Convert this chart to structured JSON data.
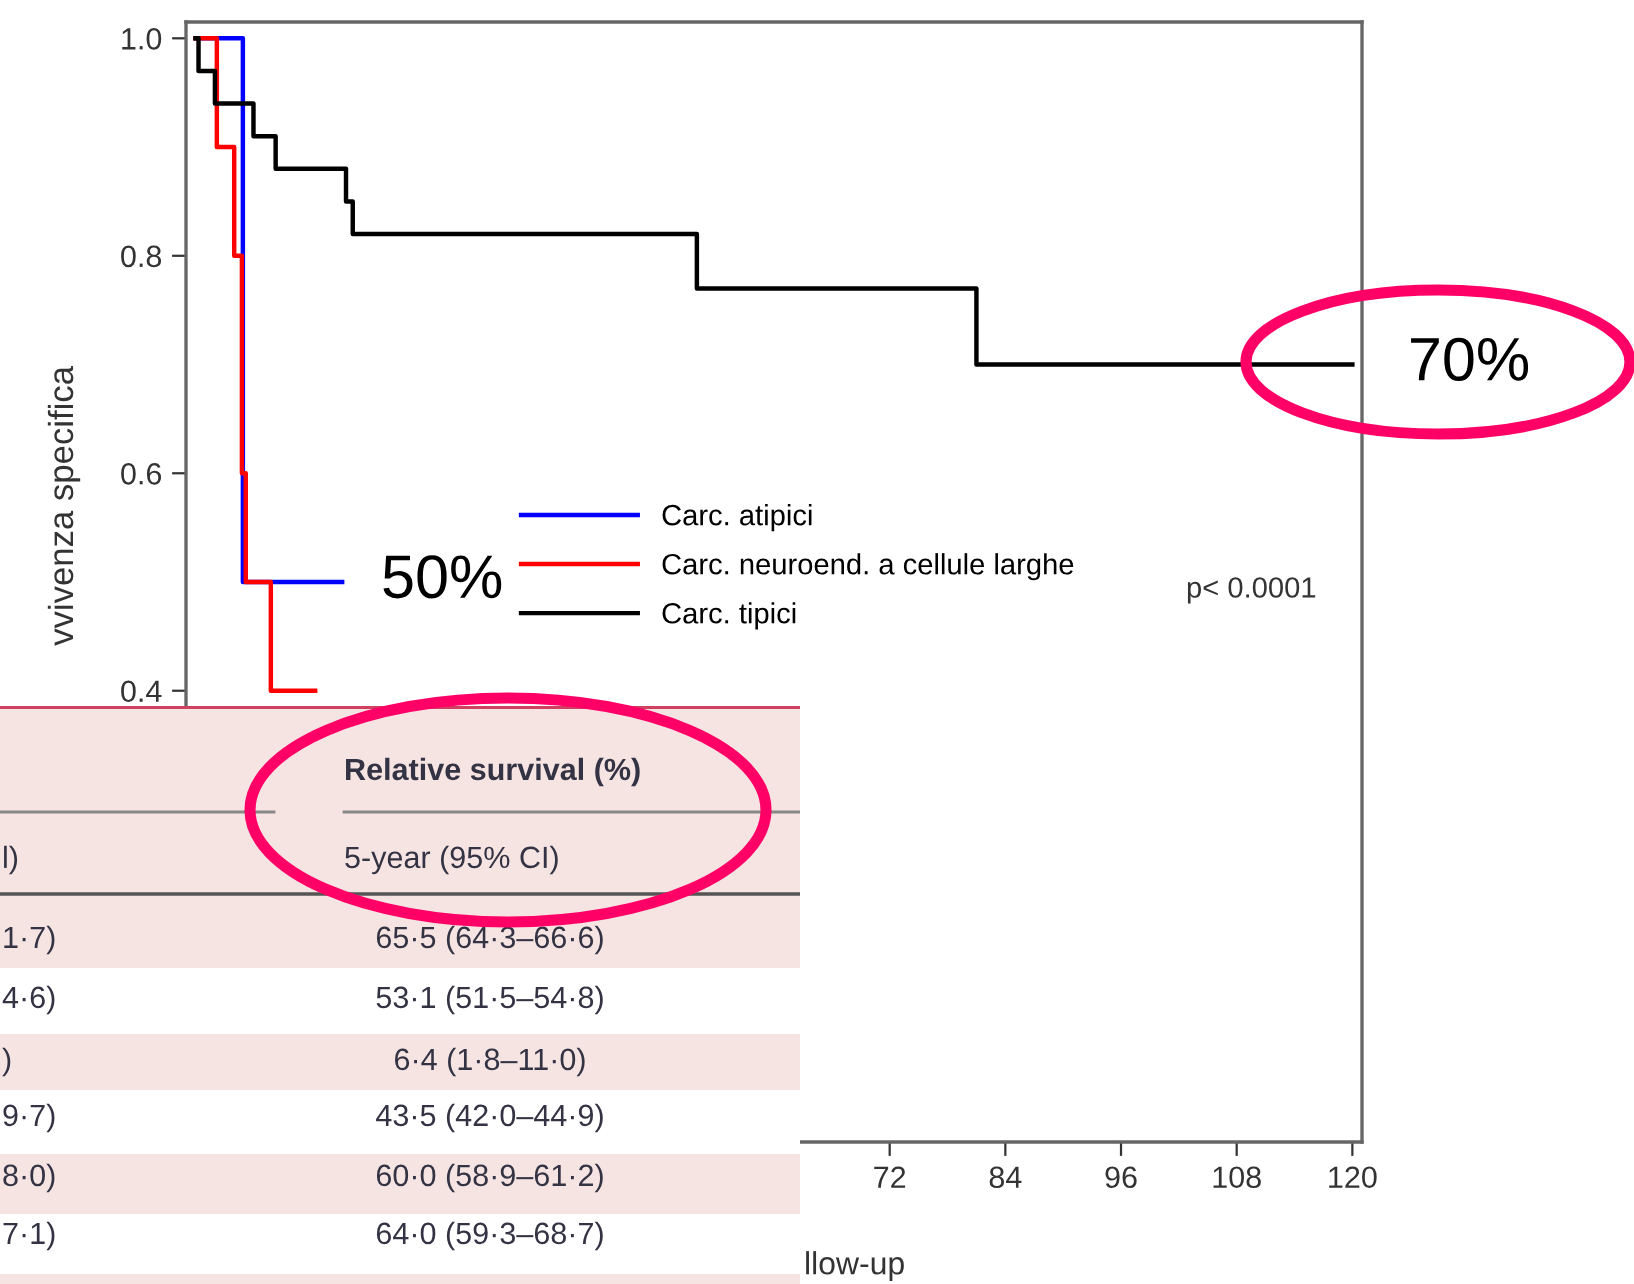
{
  "chart_data": {
    "type": "step",
    "xlabel": "llow-up",
    "ylabel": "vvivenza specifica",
    "xlim": [
      -1,
      121
    ],
    "ylim": [
      -0.015,
      1.015
    ],
    "xticks": [
      72,
      84,
      96,
      108,
      120
    ],
    "yticks": [
      {
        "value": 0.4,
        "label": "0.4"
      },
      {
        "value": 0.6,
        "label": "0.6"
      },
      {
        "value": 0.8,
        "label": "0.8"
      },
      {
        "value": 1.0,
        "label": "1.0"
      }
    ],
    "grid": false,
    "legend": "center",
    "marker": "none",
    "line_style": "solid",
    "series": [
      {
        "name": "Carc. atipici",
        "color": "#0000ff",
        "x": [
          0,
          4.9,
          4.9,
          15.2
        ],
        "values": [
          1.0,
          0.8,
          0.5,
          0.5
        ]
      },
      {
        "name": "Carc. neuroend. a cellule larghe",
        "color": "#ff0000",
        "x": [
          0,
          2.2,
          4.0,
          4.8,
          5.2,
          7.8,
          12.4
        ],
        "values": [
          1.0,
          0.9,
          0.8,
          0.6,
          0.5,
          0.4,
          0.4
        ]
      },
      {
        "name": "Carc. tipici",
        "color": "#000000",
        "x": [
          0,
          0.3,
          2.0,
          6.0,
          8.3,
          15.6,
          16.3,
          52.0,
          81.0,
          120.0
        ],
        "values": [
          1.0,
          0.97,
          0.94,
          0.91,
          0.88,
          0.85,
          0.82,
          0.77,
          0.7,
          0.7
        ]
      }
    ],
    "annotations": [
      {
        "text": "50%",
        "x": 15.2,
        "y": 0.5
      },
      {
        "text": "70%",
        "x": 120.0,
        "y": 0.7
      },
      "p< 0.0001",
      "Relative survival (%)",
      "5-year (95% CI)",
      "l)",
      "1·7)",
      "65·5 (64·3–66·6)",
      "4·6)",
      "53·1 (51·5–54·8)",
      ")",
      "6·4 (1·8–11·0)",
      "9·7)",
      "43·5 (42·0–44·9)",
      "8·0)",
      "60·0 (58·9–61·2)",
      "7·1)",
      "64·0 (59·3–68·7)"
    ]
  }
}
